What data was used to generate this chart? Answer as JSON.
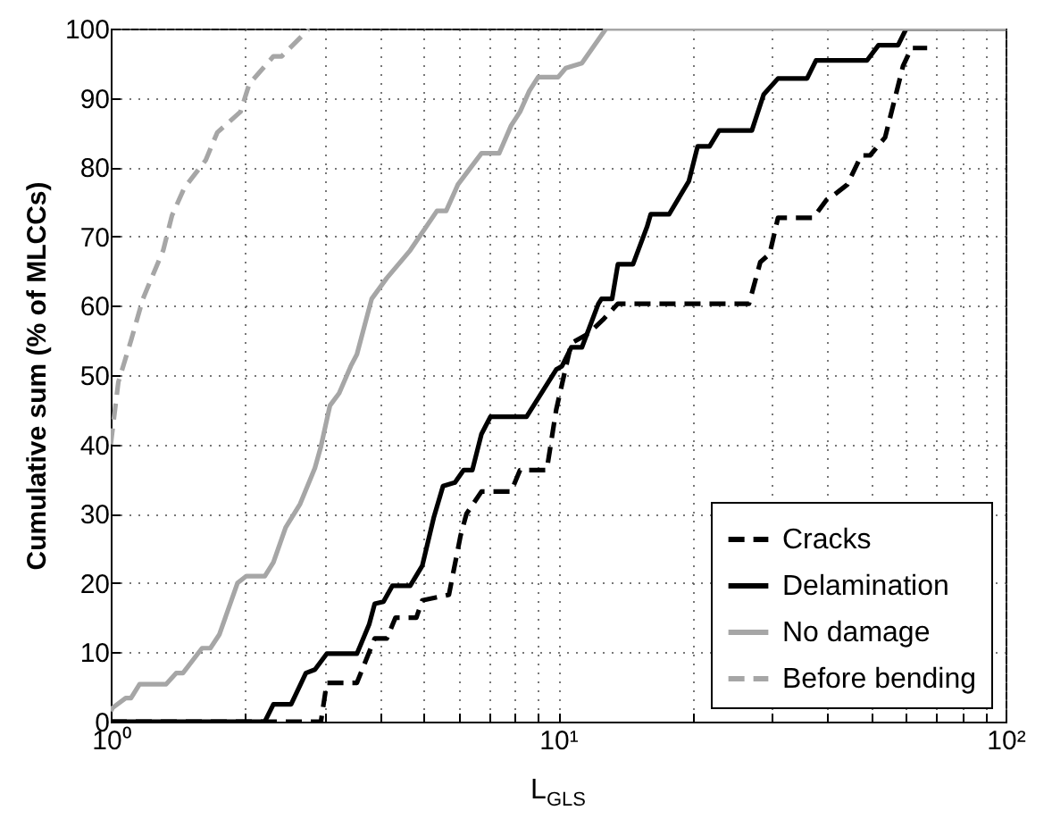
{
  "chart_data": {
    "type": "line",
    "xlabel": "L$_{GLS}$",
    "ylabel": "Cumulative sum (% of MLCCs)",
    "log": "x",
    "xlim": [
      1,
      100
    ],
    "ylim": [
      0,
      100
    ],
    "xticks": [
      {
        "value": 1,
        "label": "10⁰"
      },
      {
        "value": 2,
        "label": null
      },
      {
        "value": 3,
        "label": null
      },
      {
        "value": 4,
        "label": null
      },
      {
        "value": 5,
        "label": null
      },
      {
        "value": 6,
        "label": null
      },
      {
        "value": 7,
        "label": null
      },
      {
        "value": 8,
        "label": null
      },
      {
        "value": 9,
        "label": null
      },
      {
        "value": 10,
        "label": "10¹"
      },
      {
        "value": 20,
        "label": null
      },
      {
        "value": 30,
        "label": null
      },
      {
        "value": 40,
        "label": null
      },
      {
        "value": 50,
        "label": null
      },
      {
        "value": 60,
        "label": null
      },
      {
        "value": 70,
        "label": null
      },
      {
        "value": 80,
        "label": null
      },
      {
        "value": 90,
        "label": null
      },
      {
        "value": 100,
        "label": "10²"
      }
    ],
    "yticks": [
      0,
      10,
      20,
      30,
      40,
      50,
      60,
      70,
      80,
      90,
      100
    ],
    "grid": true,
    "legend": "bottom right",
    "series": [
      {
        "name": "Cracks",
        "color": "#000000",
        "line_style": "dashed",
        "x": [
          1,
          2.95,
          3.04,
          3.55,
          3.89,
          4.14,
          4.33,
          4.82,
          4.97,
          5.7,
          6.05,
          6.24,
          6.74,
          7.85,
          8.22,
          9.43,
          9.9,
          10.7,
          11.7,
          12.6,
          13.6,
          26.7,
          28.3,
          29.7,
          31,
          37.2,
          39.8,
          41,
          44.3,
          47.6,
          49.8,
          53.8,
          59,
          61.6,
          66.8
        ],
        "values": [
          0,
          0,
          5.6,
          5.6,
          12,
          12,
          15,
          15,
          17.5,
          18.3,
          26.8,
          30,
          33.2,
          33.2,
          36.3,
          36.3,
          45,
          54.6,
          56,
          58,
          60.3,
          60.3,
          66.3,
          67.5,
          72.7,
          72.7,
          75.3,
          75.8,
          77.5,
          81.7,
          81.7,
          84.3,
          94.6,
          97.2,
          97.2
        ]
      },
      {
        "name": "Delamination",
        "color": "#000000",
        "line_style": "solid",
        "x": [
          1,
          2.21,
          2.31,
          2.53,
          2.73,
          2.86,
          3.04,
          3.55,
          3.78,
          3.89,
          4.07,
          4.26,
          4.67,
          4.97,
          5.27,
          5.53,
          5.88,
          6.15,
          6.43,
          6.74,
          7.06,
          8.5,
          9.9,
          10.2,
          10.7,
          11.3,
          12.3,
          12.5,
          13.2,
          13.6,
          14.7,
          15.8,
          16.1,
          17.7,
          19.6,
          20.5,
          21.8,
          22.9,
          27.1,
          28.8,
          31,
          36,
          37.7,
          49,
          52,
          57.5,
          60,
          100
        ],
        "values": [
          0,
          0,
          2.5,
          2.5,
          7,
          7.5,
          9.8,
          9.8,
          14,
          17,
          17.3,
          19.6,
          19.6,
          22.5,
          29.4,
          34,
          34.5,
          36.3,
          36.3,
          41.5,
          44,
          44,
          50.8,
          51.3,
          54,
          54,
          60.3,
          61,
          61,
          66,
          66,
          71.4,
          73.2,
          73.2,
          78,
          83,
          83,
          85.3,
          85.3,
          90.5,
          92.8,
          92.8,
          95.4,
          95.4,
          97.6,
          97.6,
          100,
          100
        ]
      },
      {
        "name": "No damage",
        "color": "#a6a6a6",
        "line_style": "solid",
        "x": [
          1,
          1.01,
          1.08,
          1.11,
          1.16,
          1.33,
          1.4,
          1.45,
          1.6,
          1.67,
          1.75,
          1.92,
          2.01,
          2.21,
          2.31,
          2.46,
          2.65,
          2.86,
          2.95,
          3.09,
          3.24,
          3.44,
          3.55,
          3.83,
          4.14,
          4.67,
          5.36,
          5.62,
          5.97,
          6.74,
          7.38,
          7.85,
          8.22,
          8.62,
          9.02,
          10,
          10.4,
          11.3,
          12.8,
          100
        ],
        "values": [
          1.5,
          2,
          3.4,
          3.4,
          5.4,
          5.4,
          7,
          7,
          10.6,
          10.6,
          12.6,
          20,
          21,
          21,
          23,
          28,
          31.4,
          36.6,
          39.7,
          45.6,
          47.4,
          51.3,
          53,
          61,
          64,
          68,
          73.7,
          73.7,
          77.5,
          82,
          82,
          86,
          88,
          91,
          93,
          93,
          94.3,
          95,
          100,
          100
        ]
      },
      {
        "name": "Before bending",
        "color": "#a6a6a6",
        "line_style": "dashed",
        "x": [
          1,
          1.04,
          1.11,
          1.18,
          1.31,
          1.37,
          1.46,
          1.63,
          1.73,
          1.95,
          2.04,
          2.31,
          2.41,
          2.73,
          2.77
        ],
        "values": [
          40,
          49,
          55,
          61,
          68,
          73,
          77,
          81,
          85,
          88,
          92,
          96,
          96,
          99.5,
          100
        ]
      }
    ]
  }
}
